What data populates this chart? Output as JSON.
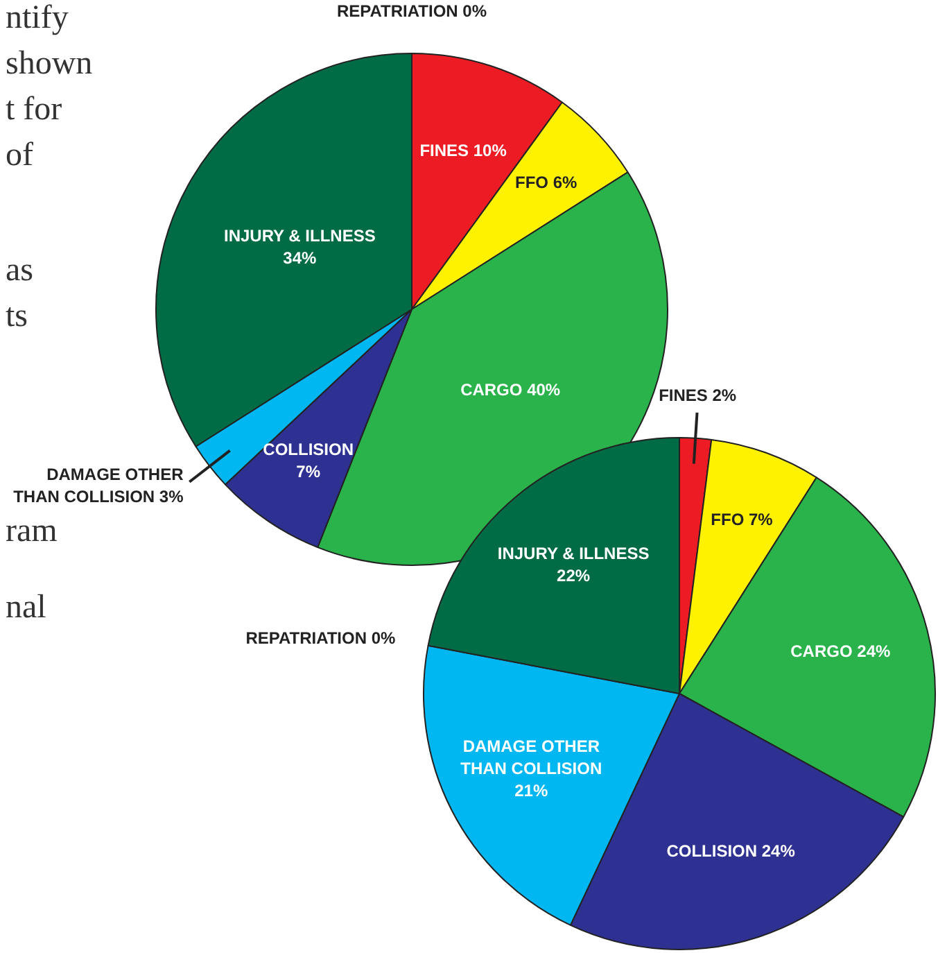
{
  "chart_data": [
    {
      "type": "pie",
      "categories": [
        "FINES",
        "FFO",
        "CARGO",
        "COLLISION",
        "DAMAGE OTHER THAN COLLISION",
        "INJURY & ILLNESS",
        "REPATRIATION"
      ],
      "values": [
        10,
        6,
        40,
        7,
        3,
        34,
        0
      ],
      "value_labels": [
        "10%",
        "6%",
        "40%",
        "7%",
        "3%",
        "34%",
        "0%"
      ],
      "colors": [
        "#ed1c24",
        "#fff200",
        "#2ab24b",
        "#2e3192",
        "#00b7f1",
        "#006c45",
        "#4d4d4d"
      ],
      "legend": false,
      "annotations": [
        "ntify",
        "shown",
        "t for",
        "of",
        "as",
        "ts",
        "ram",
        "nal"
      ]
    },
    {
      "type": "pie",
      "categories": [
        "FINES",
        "FFO",
        "CARGO",
        "COLLISION",
        "DAMAGE OTHER THAN COLLISION",
        "REPATRIATION",
        "INJURY & ILLNESS"
      ],
      "values": [
        2,
        7,
        24,
        24,
        21,
        0,
        22
      ],
      "value_labels": [
        "2%",
        "7%",
        "24%",
        "24%",
        "21%",
        "0%",
        "22%"
      ],
      "colors": [
        "#ed1c24",
        "#fff200",
        "#2ab24b",
        "#2e3192",
        "#00b7f1",
        "#4d4d4d",
        "#006c45"
      ],
      "legend": false
    }
  ]
}
